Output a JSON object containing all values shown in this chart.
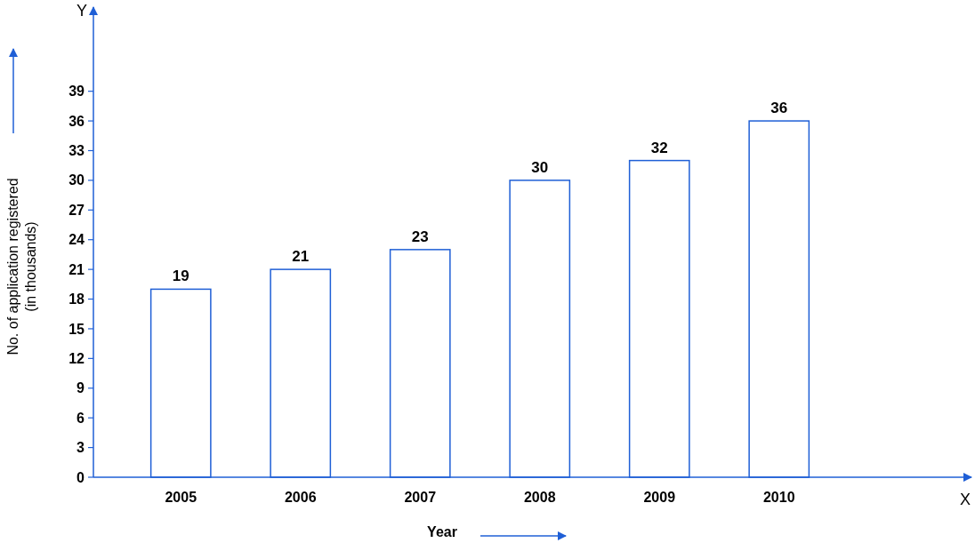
{
  "chart_data": {
    "type": "bar",
    "xlabel": "Year",
    "ylabel": "No. of application  registered\n(in thousands)",
    "annotations": [
      "Y",
      "X"
    ],
    "categories": [
      "2005",
      "2006",
      "2007",
      "2008",
      "2009",
      "2010"
    ],
    "values": [
      19,
      21,
      23,
      30,
      32,
      36
    ],
    "color": "#1f5fd6",
    "ylim": [
      0,
      47.5
    ],
    "yticks": [
      0,
      3,
      6,
      9,
      12,
      15,
      18,
      21,
      24,
      27,
      30,
      33,
      36,
      39
    ],
    "data_labels": true,
    "grid": false
  }
}
